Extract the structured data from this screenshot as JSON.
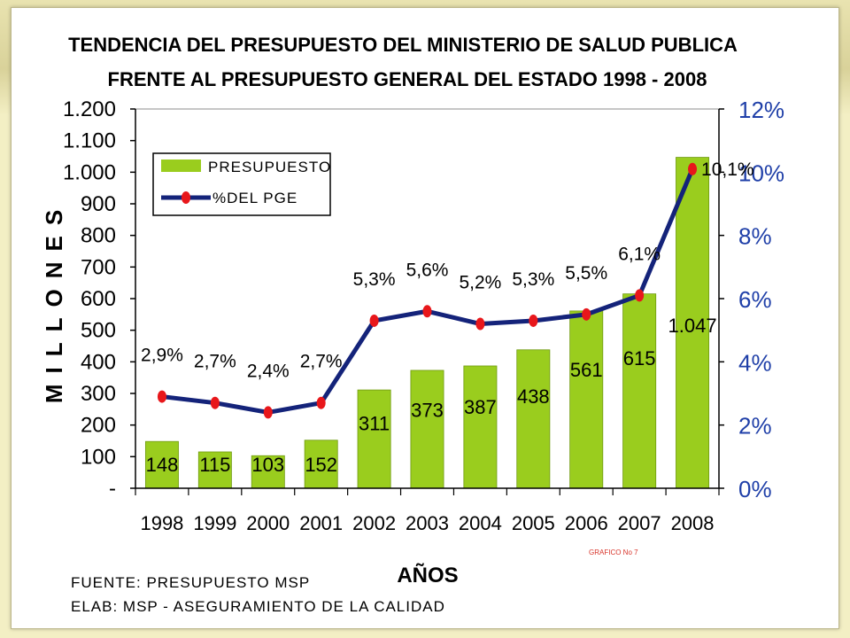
{
  "chart_data": {
    "type": "bar",
    "title_line1": "TENDENCIA DEL PRESUPUESTO DEL MINISTERIO DE SALUD PUBLICA",
    "title_line2": "FRENTE AL PRESUPUESTO GENERAL DEL ESTADO 1998 - 2008",
    "ylabel": "MILLONES",
    "xlabel": "AÑOS",
    "categories": [
      "1998",
      "1999",
      "2000",
      "2001",
      "2002",
      "2003",
      "2004",
      "2005",
      "2006",
      "2007",
      "2008"
    ],
    "series": [
      {
        "name": "PRESUPUESTO",
        "type": "bar",
        "color": "#9acd1e",
        "values": [
          148,
          115,
          103,
          152,
          311,
          373,
          387,
          438,
          561,
          615,
          1047
        ],
        "labels": [
          "148",
          "115",
          "103",
          "152",
          "311",
          "373",
          "387",
          "438",
          "561",
          "615",
          "1.047"
        ]
      },
      {
        "name": "%DEL PGE",
        "type": "line",
        "line_color": "#14237a",
        "marker_color": "#e8171b",
        "values": [
          2.9,
          2.7,
          2.4,
          2.7,
          5.3,
          5.6,
          5.2,
          5.3,
          5.5,
          6.1,
          10.1
        ],
        "labels": [
          "2,9%",
          "2,7%",
          "2,4%",
          "2,7%",
          "5,3%",
          "5,6%",
          "5,2%",
          "5,3%",
          "5,5%",
          "6,1%",
          "10,1%"
        ]
      }
    ],
    "y_left": {
      "range": [
        0,
        1200
      ],
      "ticks": [
        0,
        100,
        200,
        300,
        400,
        500,
        600,
        700,
        800,
        900,
        1000,
        1100,
        1200
      ],
      "tick_labels": [
        "-",
        "100",
        "200",
        "300",
        "400",
        "500",
        "600",
        "700",
        "800",
        "900",
        "1.000",
        "1.100",
        "1.200"
      ]
    },
    "y_right": {
      "range": [
        0,
        12
      ],
      "ticks": [
        0,
        2,
        4,
        6,
        8,
        10,
        12
      ],
      "tick_labels": [
        "0%",
        "2%",
        "4%",
        "6%",
        "8%",
        "10%",
        "12%"
      ]
    },
    "legend_position": "top-left"
  },
  "footer": {
    "source": "FUENTE: PRESUPUESTO MSP",
    "elab": "ELAB: MSP - ASEGURAMIENTO DE LA CALIDAD",
    "figure_note": "GRAFICO No 7"
  }
}
